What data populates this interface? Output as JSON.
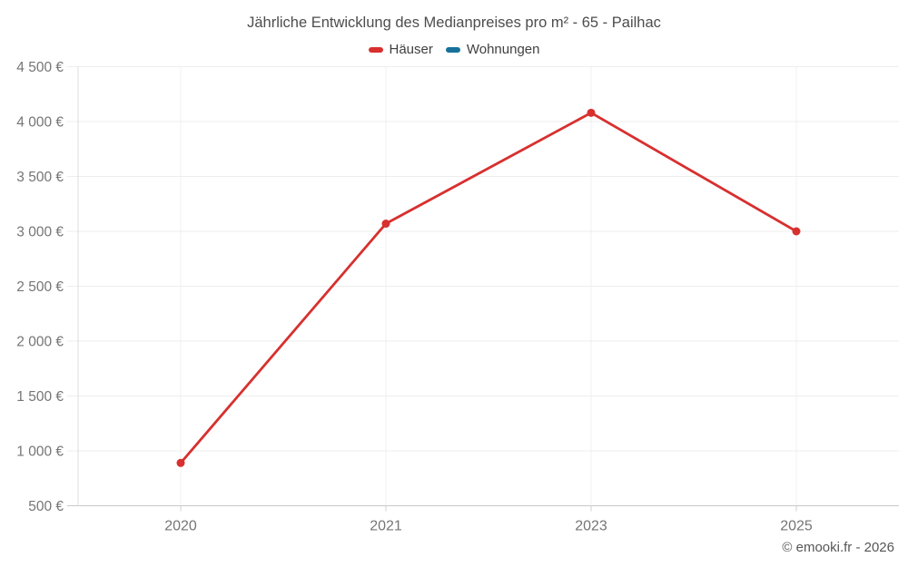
{
  "title": "Jährliche Entwicklung des Medianpreises pro m² - 65 - Pailhac",
  "legend": [
    {
      "label": "Häuser",
      "color": "#d7302f"
    },
    {
      "label": "Wohnungen",
      "color": "#17719c"
    }
  ],
  "footer": "© emooki.fr - 2026",
  "colors": {
    "title_text": "#4d4d4d",
    "axis_label_text": "#757575",
    "gridline": "#ededed",
    "vertical_gridline": "#f0f0f0",
    "axis_line": "#c9c9c9",
    "tick_mark": "#cfcfcf"
  },
  "chart_data": {
    "type": "line",
    "categories": [
      "2020",
      "2021",
      "2023",
      "2025"
    ],
    "series": [
      {
        "name": "Häuser",
        "color": "#d7302f",
        "values": [
          890,
          3070,
          4080,
          3000
        ]
      },
      {
        "name": "Wohnungen",
        "color": "#17719c",
        "values": []
      }
    ],
    "title": "Jährliche Entwicklung des Medianpreises pro m² - 65 - Pailhac",
    "xlabel": "",
    "ylabel": "",
    "ylim": [
      500,
      4500
    ],
    "ytick_step": 500,
    "ytick_labels": [
      "500 €",
      "1 000 €",
      "1 500 €",
      "2 000 €",
      "2 500 €",
      "3 000 €",
      "3 500 €",
      "4 000 €",
      "4 500 €"
    ],
    "grid": true,
    "legend_position": "top"
  }
}
